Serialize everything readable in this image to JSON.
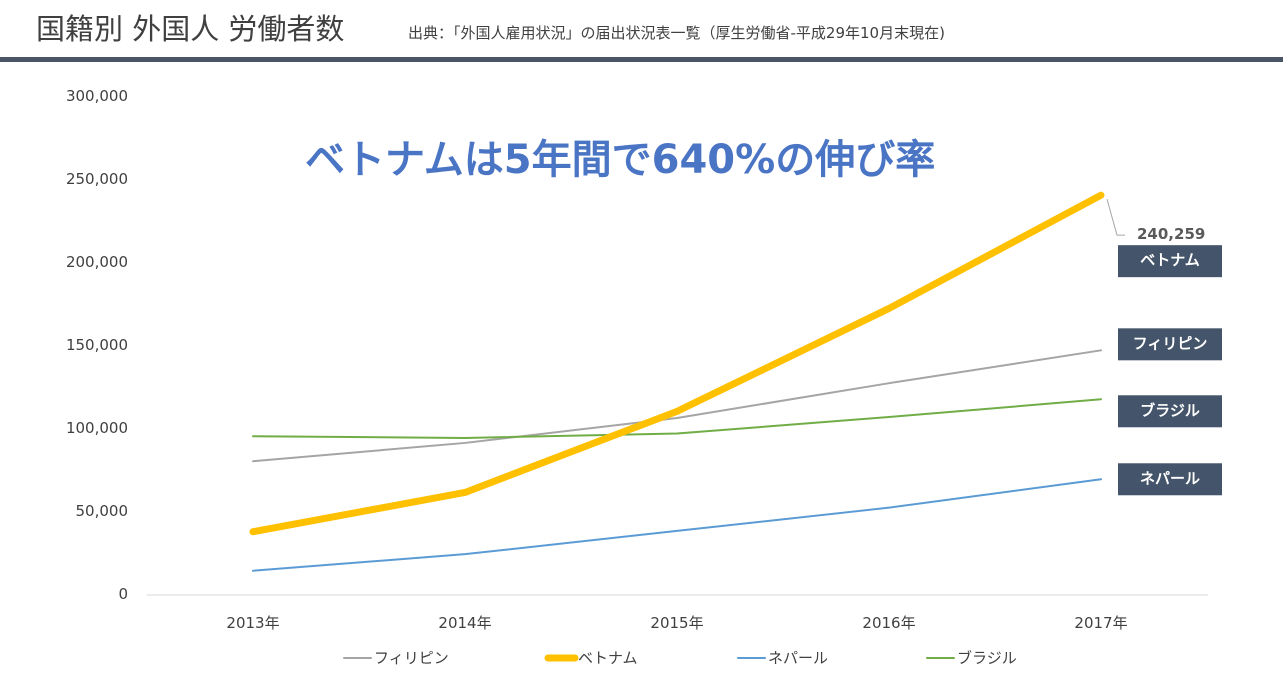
{
  "header": {
    "title": "国籍別 外国人 労働者数",
    "source": "出典：「外国人雇用状況」の届出状況表一覧（厚生労働省-平成29年10月末現在)",
    "rule_color": "#4b5568"
  },
  "chart_data": {
    "type": "line",
    "headline": "ベトナムは5年間で640%の伸び率",
    "categories": [
      "2013年",
      "2014年",
      "2015年",
      "2016年",
      "2017年"
    ],
    "ylim": [
      0,
      300000
    ],
    "yticks": [
      0,
      50000,
      100000,
      150000,
      200000,
      250000,
      300000
    ],
    "ytick_labels": [
      "0",
      "50,000",
      "100,000",
      "150,000",
      "200,000",
      "250,000",
      "300,000"
    ],
    "grid": false,
    "legend_position": "bottom",
    "series": [
      {
        "name": "フィリピン",
        "color": "#a5a5a5",
        "width": 2,
        "values": [
          80000,
          91000,
          106000,
          127000,
          146798
        ]
      },
      {
        "name": "ベトナム",
        "color": "#ffc000",
        "width": 7,
        "values": [
          37537,
          61168,
          110013,
          172018,
          240259
        ]
      },
      {
        "name": "ネパール",
        "color": "#5b9bd5",
        "width": 2,
        "values": [
          14000,
          24000,
          38000,
          52000,
          69111
        ]
      },
      {
        "name": "ブラジル",
        "color": "#70ad47",
        "width": 2,
        "values": [
          95000,
          94000,
          96672,
          106597,
          117299
        ]
      }
    ],
    "badges": [
      {
        "label": "ベトナム",
        "series": 1
      },
      {
        "label": "フィリピン",
        "series": 0
      },
      {
        "label": "ブラジル",
        "series": 3
      },
      {
        "label": "ネパール",
        "series": 2
      }
    ],
    "badge_color": "#44546a",
    "value_callout": {
      "series": 1,
      "text": "240,259"
    }
  }
}
